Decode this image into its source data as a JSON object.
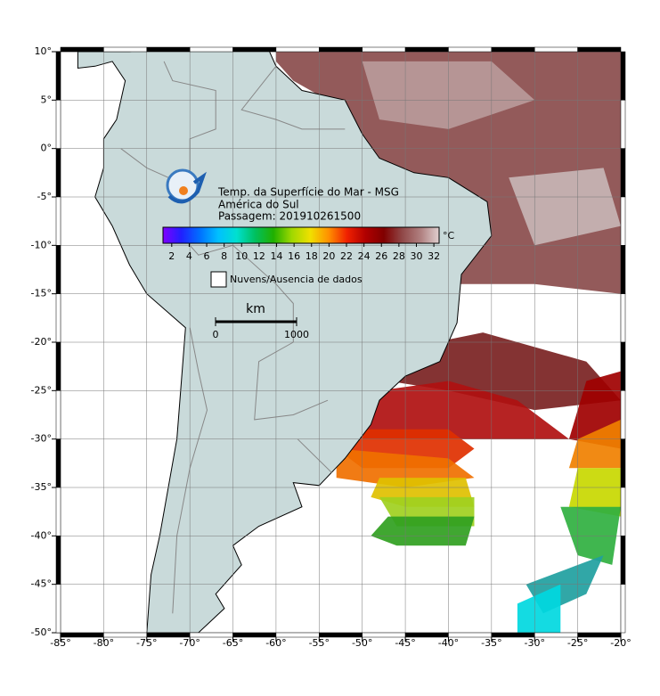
{
  "legend": {
    "title_lines": [
      "Temp. da Superfície do Mar - MSG",
      "América do Sul",
      "Passagem: 201910261500"
    ],
    "unit": "°C",
    "colorbar": {
      "range": [
        1,
        32.6
      ],
      "ticks": [
        2,
        4,
        6,
        8,
        10,
        12,
        14,
        16,
        18,
        20,
        22,
        24,
        26,
        28,
        30,
        32
      ],
      "colors": [
        "#8000ff",
        "#2020ff",
        "#0070ff",
        "#00c0ff",
        "#00e0d0",
        "#00c060",
        "#20b000",
        "#a0d800",
        "#f0e000",
        "#ff9000",
        "#f02000",
        "#b00000",
        "#800000",
        "#904848",
        "#b08080",
        "#e0d0d0"
      ]
    },
    "no_data": "Nuvens/Ausencia de dados"
  },
  "scale_bar": {
    "unit": "km",
    "ticks": [
      0,
      1000
    ]
  },
  "map": {
    "xlim": [
      -85,
      -20
    ],
    "ylim": [
      -50,
      10
    ],
    "xticks": [
      {
        "value": -85,
        "label": "-85°"
      },
      {
        "value": -80,
        "label": "-80°"
      },
      {
        "value": -75,
        "label": "-75°"
      },
      {
        "value": -70,
        "label": "-70°"
      },
      {
        "value": -65,
        "label": "-65°"
      },
      {
        "value": -60,
        "label": "-60°"
      },
      {
        "value": -55,
        "label": "-55°"
      },
      {
        "value": -50,
        "label": "-50°"
      },
      {
        "value": -45,
        "label": "-45°"
      },
      {
        "value": -40,
        "label": "-40°"
      },
      {
        "value": -35,
        "label": "-35°"
      },
      {
        "value": -30,
        "label": "-30°"
      },
      {
        "value": -25,
        "label": "-25°"
      },
      {
        "value": -20,
        "label": "-20°"
      }
    ],
    "yticks": [
      {
        "value": 10,
        "label": "10°"
      },
      {
        "value": 5,
        "label": "5°"
      },
      {
        "value": 0,
        "label": "0°"
      },
      {
        "value": -5,
        "label": "-5°"
      },
      {
        "value": -10,
        "label": "-10°"
      },
      {
        "value": -15,
        "label": "-15°"
      },
      {
        "value": -20,
        "label": "-20°"
      },
      {
        "value": -25,
        "label": "-25°"
      },
      {
        "value": -30,
        "label": "-30°"
      },
      {
        "value": -35,
        "label": "-35°"
      },
      {
        "value": -40,
        "label": "-40°"
      },
      {
        "value": -45,
        "label": "-45°"
      },
      {
        "value": -50,
        "label": "-50°"
      }
    ]
  }
}
